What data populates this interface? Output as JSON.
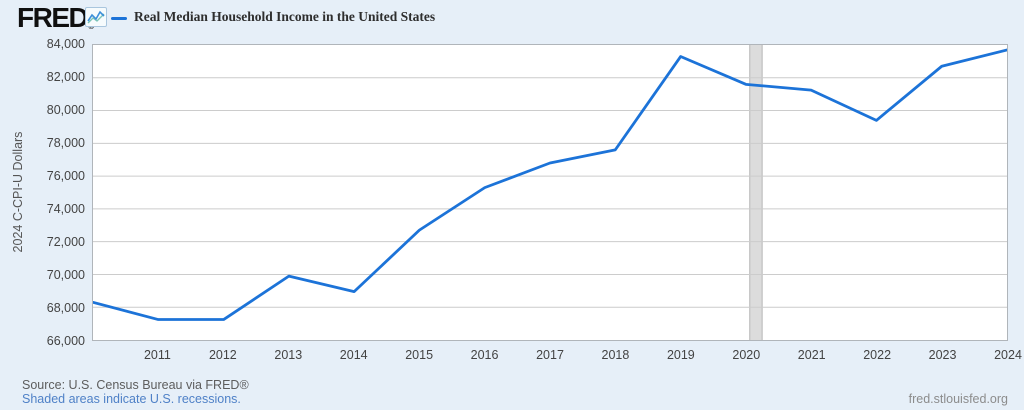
{
  "header": {
    "logo_text": "FRED",
    "logo_registered": "®",
    "accent_color": "#1c73d8"
  },
  "chart_data": {
    "type": "line",
    "title": "Real Median Household Income in the United States",
    "xlabel": "",
    "ylabel": "2024 C-CPI-U Dollars",
    "x": [
      2010,
      2011,
      2012,
      2013,
      2014,
      2015,
      2016,
      2017,
      2018,
      2019,
      2020,
      2021,
      2022,
      2023,
      2024
    ],
    "values": [
      68300,
      67250,
      67250,
      69900,
      68950,
      72700,
      75300,
      76800,
      77600,
      83300,
      81600,
      81250,
      79400,
      82700,
      83700
    ],
    "xlim": [
      2010,
      2024
    ],
    "ylim": [
      66000,
      84000
    ],
    "ytick_step": 2000,
    "ytick_labels": [
      "84,000",
      "82,000",
      "80,000",
      "78,000",
      "76,000",
      "74,000",
      "72,000",
      "70,000",
      "68,000",
      "66,000"
    ],
    "xtick_labels": [
      "2011",
      "2012",
      "2013",
      "2014",
      "2015",
      "2016",
      "2017",
      "2018",
      "2019",
      "2020",
      "2021",
      "2022",
      "2023",
      "2024"
    ],
    "grid": "horizontal",
    "legend_position": "top-left",
    "line_color": "#1c73d8",
    "gridline_color": "#cccccc",
    "recession_band_color": "#dcdcdc",
    "recession_band_edge_color": "#b5b5b5",
    "recession_bands": [
      {
        "start": 2020.06,
        "end": 2020.25
      }
    ]
  },
  "footer": {
    "source": "Source: U.S. Census Bureau via FRED®",
    "recession_note": "Shaded areas indicate U.S. recessions.",
    "site": "fred.stlouisfed.org"
  }
}
